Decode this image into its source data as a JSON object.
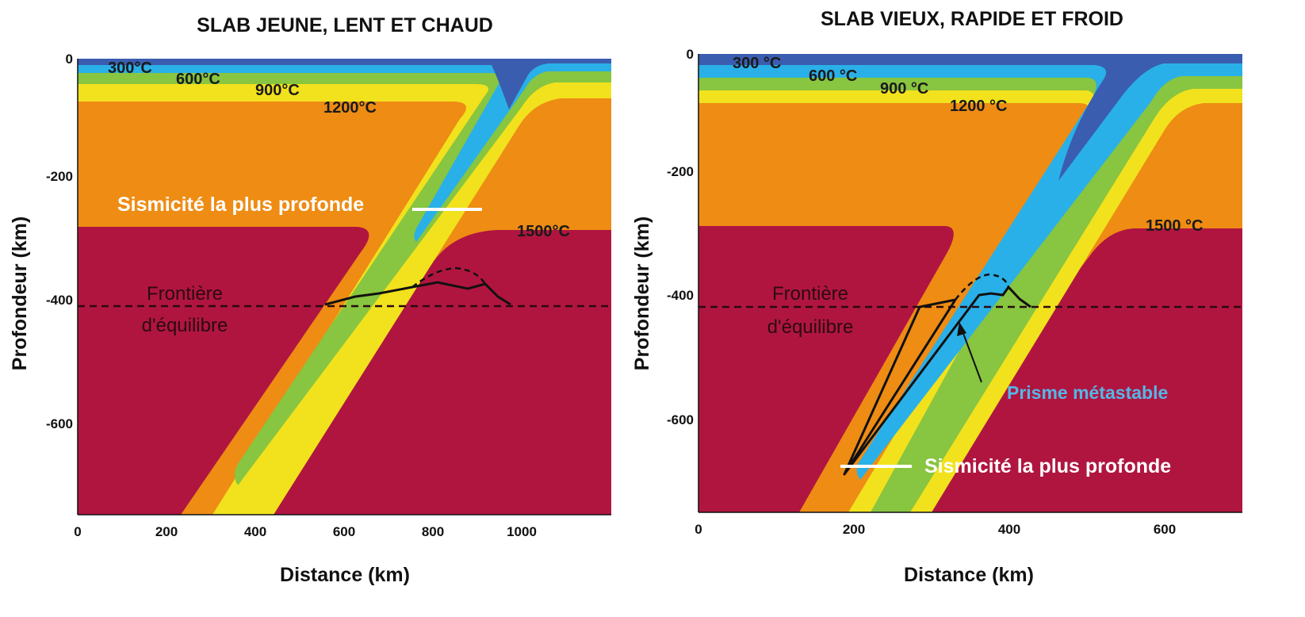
{
  "colors": {
    "c300": "#3a5db0",
    "c600": "#2ab0e8",
    "c900": "#88c540",
    "c1200": "#f1e21d",
    "c1500": "#ee8c14",
    "mantle": "#b01540",
    "line": "#111111",
    "seismic": "#ffffff",
    "metastable_text": "#54b7e6"
  },
  "panels": [
    {
      "title": "SLAB JEUNE, LENT ET CHAUD",
      "ylabel": "Profondeur (km)",
      "xlabel": "Distance (km)",
      "x_ticks": [
        "0",
        "200",
        "400",
        "600",
        "800",
        "1000"
      ],
      "y_ticks": [
        "0",
        "-200",
        "-400",
        "-600"
      ],
      "isotherms": [
        "300°C",
        "600°C",
        "900°C",
        "1200°C",
        "1500°C"
      ],
      "frontier": [
        "Frontière",
        "d'équilibre"
      ],
      "deepest_seismicity": "Sismicité la plus profonde"
    },
    {
      "title": "SLAB VIEUX, RAPIDE ET FROID",
      "ylabel": "Profondeur (km)",
      "xlabel": "Distance (km)",
      "x_ticks": [
        "0",
        "200",
        "400",
        "600"
      ],
      "y_ticks": [
        "0",
        "-200",
        "-400",
        "-600"
      ],
      "isotherms": [
        "300 °C",
        "600 °C",
        "900 °C",
        "1200 °C",
        "1500 °C"
      ],
      "frontier": [
        "Frontière",
        "d'équilibre"
      ],
      "deepest_seismicity": "Sismicité la plus profonde",
      "metastable": "Prisme métastable"
    }
  ]
}
